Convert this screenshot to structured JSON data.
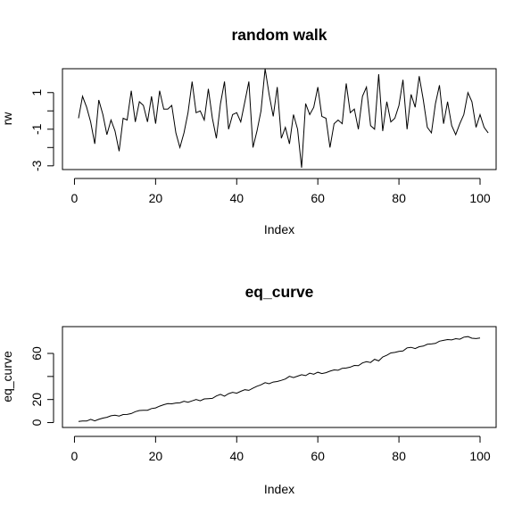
{
  "chart_data": [
    {
      "type": "line",
      "title": "random walk",
      "xlabel": "Index",
      "ylabel": "rw",
      "xlim": [
        1,
        100
      ],
      "ylim": [
        -3,
        2.1
      ],
      "x_ticks": [
        0,
        20,
        40,
        60,
        80,
        100
      ],
      "y_ticks": [
        -3,
        -2,
        -1,
        0,
        1
      ],
      "y_tick_labels": [
        "-3",
        "",
        "-1",
        "",
        "1"
      ],
      "series": [
        {
          "values": [
            -0.4,
            0.8,
            0.2,
            -0.6,
            -1.8,
            0.6,
            -0.2,
            -1.3,
            -0.5,
            -1.1,
            -2.2,
            -0.4,
            -0.5,
            1.1,
            -0.6,
            0.5,
            0.3,
            -0.6,
            0.8,
            -0.7,
            1.1,
            0.1,
            0.1,
            0.3,
            -1.2,
            -2.0,
            -1.2,
            -0.1,
            1.6,
            -0.1,
            0.0,
            -0.5,
            1.2,
            -0.4,
            -1.5,
            0.4,
            1.6,
            -1.0,
            -0.2,
            -0.1,
            -0.6,
            0.5,
            1.6,
            -2.0,
            -1.1,
            0.0,
            2.3,
            0.9,
            -0.3,
            1.3,
            -1.5,
            -0.9,
            -1.8,
            -0.2,
            -1.0,
            -3.1,
            0.4,
            -0.2,
            0.2,
            1.3,
            -0.3,
            -0.4,
            -2.0,
            -0.7,
            -0.5,
            -0.7,
            1.5,
            -0.1,
            0.1,
            -1.0,
            0.8,
            1.3,
            -0.8,
            -1.0,
            2.0,
            -1.1,
            0.5,
            -0.6,
            -0.4,
            0.3,
            1.7,
            -1.0,
            0.9,
            0.2,
            1.9,
            0.6,
            -0.9,
            -1.2,
            0.4,
            1.4,
            -0.7,
            0.5,
            -0.8,
            -1.3,
            -0.7,
            -0.2,
            1.0,
            0.5,
            -0.9,
            -0.2,
            -0.9,
            -1.2
          ]
        }
      ]
    },
    {
      "type": "line",
      "title": "eq_curve",
      "xlabel": "Index",
      "ylabel": "eq_curve",
      "xlim": [
        1,
        100
      ],
      "ylim": [
        -1,
        80
      ],
      "x_ticks": [
        0,
        20,
        40,
        60,
        80,
        100
      ],
      "y_ticks": [
        0,
        20,
        40,
        60
      ],
      "y_tick_labels": [
        "0",
        "20",
        "",
        "60"
      ],
      "series": [
        {
          "values": [
            1.0,
            1.3,
            1.3,
            2.8,
            1.5,
            2.8,
            3.9,
            4.6,
            5.9,
            6.4,
            5.7,
            7.0,
            7.1,
            7.8,
            9.5,
            10.5,
            10.6,
            10.7,
            12.2,
            12.7,
            14.3,
            15.5,
            16.4,
            16.3,
            17.0,
            17.1,
            18.5,
            17.7,
            18.8,
            20.0,
            18.9,
            20.5,
            20.8,
            21.0,
            23.1,
            24.5,
            22.9,
            25.1,
            26.3,
            25.5,
            27.1,
            28.5,
            28.0,
            29.9,
            31.5,
            32.8,
            34.6,
            33.7,
            35.2,
            35.6,
            36.6,
            37.8,
            40.1,
            39.0,
            40.3,
            41.5,
            40.7,
            42.8,
            42.0,
            43.7,
            42.5,
            43.3,
            44.6,
            45.7,
            45.4,
            47.1,
            47.3,
            48.1,
            49.6,
            49.3,
            51.7,
            52.8,
            52.1,
            54.9,
            53.5,
            56.9,
            58.4,
            60.4,
            60.9,
            61.7,
            62.1,
            64.8,
            65.3,
            64.2,
            65.8,
            66.4,
            67.9,
            68.2,
            68.7,
            70.6,
            71.3,
            72.0,
            71.7,
            72.8,
            72.3,
            74.1,
            74.6,
            73.2,
            72.9,
            73.4
          ]
        }
      ]
    }
  ]
}
